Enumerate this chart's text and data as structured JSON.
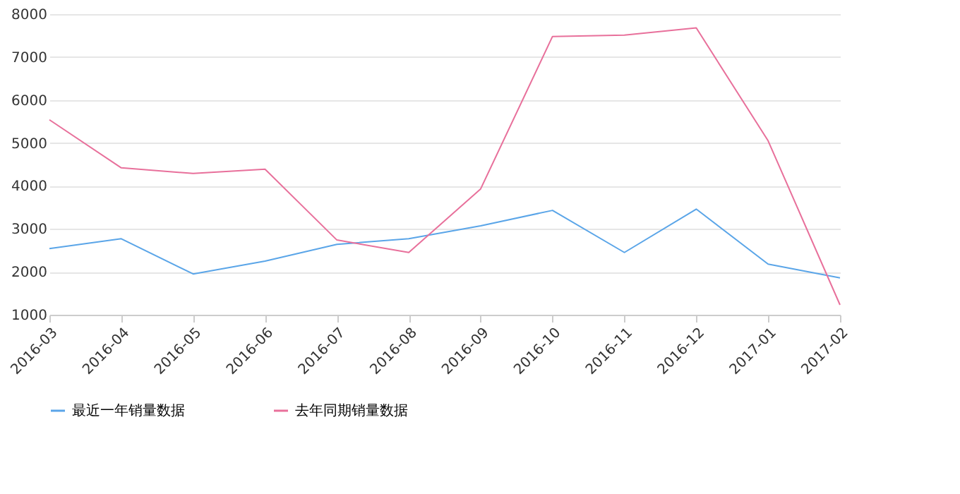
{
  "chart_data": {
    "type": "line",
    "categories": [
      "2016-03",
      "2016-04",
      "2016-05",
      "2016-06",
      "2016-07",
      "2016-08",
      "2016-09",
      "2016-10",
      "2016-11",
      "2016-12",
      "2017-01",
      "2017-02"
    ],
    "series": [
      {
        "name": "最近一年销量数据",
        "color": "#5aa5e8",
        "values": [
          2540,
          2770,
          1950,
          2250,
          2640,
          2770,
          3070,
          3430,
          2450,
          3460,
          2180,
          1860
        ]
      },
      {
        "name": "去年同期销量数据",
        "color": "#e8709b",
        "values": [
          5540,
          4420,
          4290,
          4390,
          2740,
          2450,
          3930,
          7480,
          7510,
          7680,
          5050,
          1230
        ]
      }
    ],
    "ylim": [
      1000,
      8000
    ],
    "yticks": [
      1000,
      2000,
      3000,
      4000,
      5000,
      6000,
      7000,
      8000
    ],
    "grid": "y",
    "legend": "bottom",
    "marker": "none",
    "line_style": "solid"
  }
}
